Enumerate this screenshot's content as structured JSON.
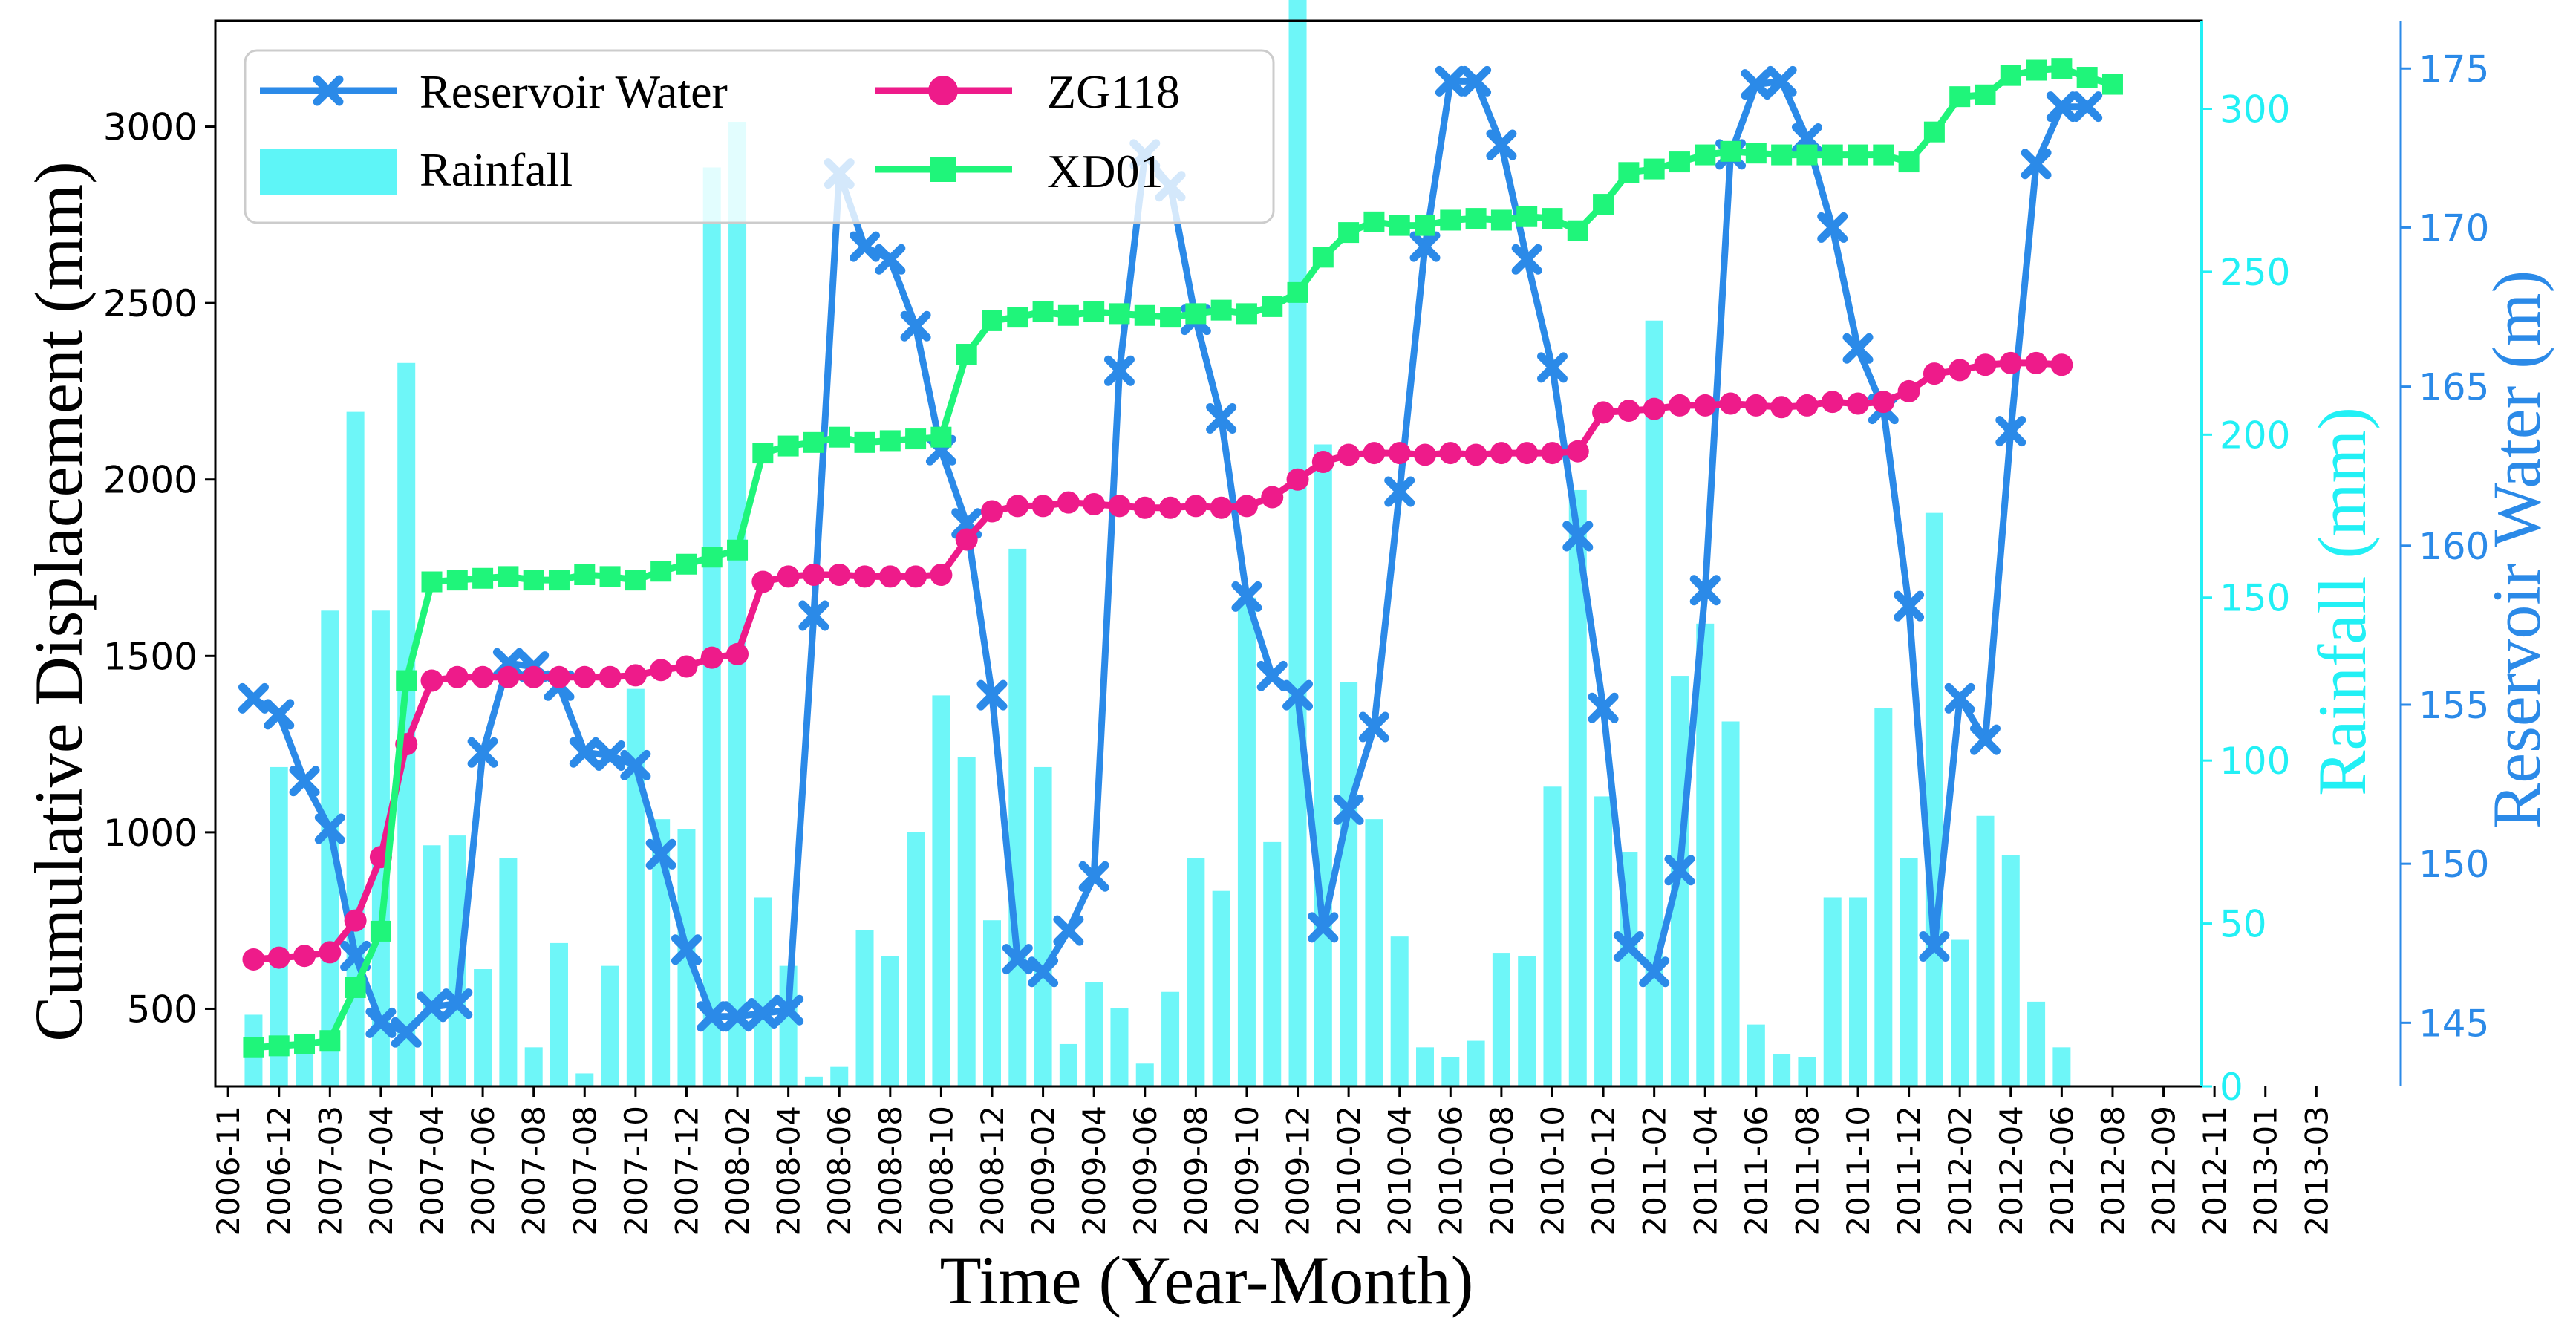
{
  "chart_data": {
    "type": "line",
    "title": "",
    "xlabel": "Time (Year-Month)",
    "ylabel_left": "Cumulative Displacement (mm)",
    "ylabel_right_1": "Rainfall (mm)",
    "ylabel_right_2": "Reservoir Water (m)",
    "x_tick_labels": [
      "2006-11",
      "2006-12",
      "2007-03",
      "2007-04",
      "2007-04",
      "2007-06",
      "2007-08",
      "2007-08",
      "2007-10",
      "2007-12",
      "2008-02",
      "2008-04",
      "2008-06",
      "2008-08",
      "2008-10",
      "2008-12",
      "2009-02",
      "2009-04",
      "2009-06",
      "2009-08",
      "2009-10",
      "2009-12",
      "2010-02",
      "2010-04",
      "2010-06",
      "2010-08",
      "2010-10",
      "2010-12",
      "2011-02",
      "2011-04",
      "2011-06",
      "2011-08",
      "2011-10",
      "2011-12",
      "2012-02",
      "2012-04",
      "2012-06",
      "2012-08",
      "2012-09",
      "2012-11",
      "2013-01",
      "2013-03"
    ],
    "x_range_index": [
      -0.5,
      77.5
    ],
    "y_left": {
      "ticks": [
        500,
        1000,
        1500,
        2000,
        2500,
        3000
      ],
      "ylim": [
        280,
        3300
      ]
    },
    "y_rain": {
      "ticks": [
        0,
        50,
        100,
        150,
        200,
        250,
        300
      ],
      "ylim": [
        0,
        327
      ]
    },
    "y_water": {
      "ticks": [
        145,
        150,
        155,
        160,
        165,
        170,
        175
      ],
      "ylim": [
        143,
        176.5
      ]
    },
    "legend": {
      "placement": "top-left",
      "entries": [
        "Reservoir Water",
        "Rainfall",
        "ZG118",
        "XD01"
      ]
    },
    "grid": false,
    "colors": {
      "reservoir": "#2b8ae8",
      "rainfall": "#5ef5f7",
      "zg118": "#ee1b8a",
      "xd01": "#1ff57a",
      "rain_axis": "#22f0f5",
      "water_axis": "#2b8ae8"
    },
    "series": [
      {
        "name": "Rainfall",
        "kind": "bar",
        "axis": "rain",
        "values": [
          22,
          98,
          16,
          146,
          207,
          146,
          222,
          74,
          77,
          36,
          70,
          12,
          44,
          4,
          37,
          122,
          82,
          79,
          282,
          296,
          58,
          37,
          3,
          6,
          48,
          40,
          78,
          120,
          101,
          51,
          165,
          98,
          13,
          32,
          24,
          7,
          29,
          70,
          60,
          150,
          75,
          348,
          197,
          124,
          82,
          46,
          12,
          9,
          14,
          41,
          40,
          92,
          183,
          89,
          72,
          235,
          126,
          142,
          112,
          19,
          10,
          9,
          58,
          58,
          116,
          70,
          176,
          45,
          83,
          71,
          26,
          12
        ],
        "start_index": 1
      },
      {
        "name": "Reservoir Water",
        "kind": "line",
        "axis": "water",
        "marker": "x",
        "values": [
          155.2,
          154.7,
          152.6,
          151.1,
          147.1,
          145.0,
          144.7,
          145.5,
          145.6,
          153.5,
          156.3,
          156.2,
          155.6,
          153.5,
          153.4,
          153.1,
          150.3,
          147.3,
          145.2,
          145.2,
          145.3,
          145.4,
          157.8,
          171.7,
          169.4,
          169.0,
          166.9,
          163.0,
          160.7,
          155.3,
          147.0,
          146.6,
          147.9,
          149.6,
          165.5,
          172.3,
          171.3,
          167.1,
          164.0,
          158.4,
          155.9,
          155.3,
          148.0,
          151.7,
          154.3,
          161.7,
          169.4,
          174.6,
          174.6,
          172.6,
          169.0,
          165.6,
          160.3,
          154.9,
          147.4,
          146.6,
          149.8,
          158.6,
          172.3,
          174.5,
          174.6,
          172.8,
          170.0,
          166.2,
          164.3,
          158.1,
          147.4,
          155.2,
          153.9,
          163.6,
          172.0,
          173.8,
          173.8
        ],
        "start_index": 1
      },
      {
        "name": "ZG118",
        "kind": "line",
        "axis": "left",
        "marker": "circle",
        "values": [
          640,
          645,
          650,
          660,
          750,
          930,
          1250,
          1430,
          1440,
          1440,
          1440,
          1440,
          1440,
          1440,
          1440,
          1445,
          1460,
          1470,
          1495,
          1505,
          1710,
          1725,
          1730,
          1730,
          1725,
          1725,
          1725,
          1730,
          1830,
          1910,
          1925,
          1925,
          1935,
          1930,
          1925,
          1920,
          1920,
          1925,
          1920,
          1925,
          1950,
          2000,
          2050,
          2070,
          2075,
          2075,
          2070,
          2075,
          2070,
          2075,
          2075,
          2075,
          2080,
          2190,
          2195,
          2200,
          2210,
          2210,
          2215,
          2210,
          2205,
          2210,
          2220,
          2215,
          2220,
          2250,
          2300,
          2310,
          2325,
          2330,
          2330,
          2325
        ],
        "start_index": 1
      },
      {
        "name": "XD01",
        "kind": "line",
        "axis": "left",
        "marker": "square",
        "values": [
          390,
          395,
          400,
          410,
          560,
          720,
          1430,
          1710,
          1715,
          1720,
          1725,
          1715,
          1715,
          1730,
          1725,
          1715,
          1740,
          1760,
          1780,
          1800,
          2075,
          2095,
          2105,
          2120,
          2105,
          2110,
          2115,
          2120,
          2355,
          2450,
          2460,
          2475,
          2465,
          2475,
          2470,
          2465,
          2460,
          2470,
          2480,
          2470,
          2490,
          2530,
          2630,
          2700,
          2730,
          2720,
          2720,
          2735,
          2740,
          2735,
          2745,
          2740,
          2705,
          2780,
          2870,
          2880,
          2900,
          2920,
          2930,
          2925,
          2920,
          2920,
          2920,
          2920,
          2920,
          2900,
          2985,
          3085,
          3090,
          3145,
          3160,
          3165,
          3140,
          3120
        ],
        "start_index": 1
      }
    ]
  }
}
